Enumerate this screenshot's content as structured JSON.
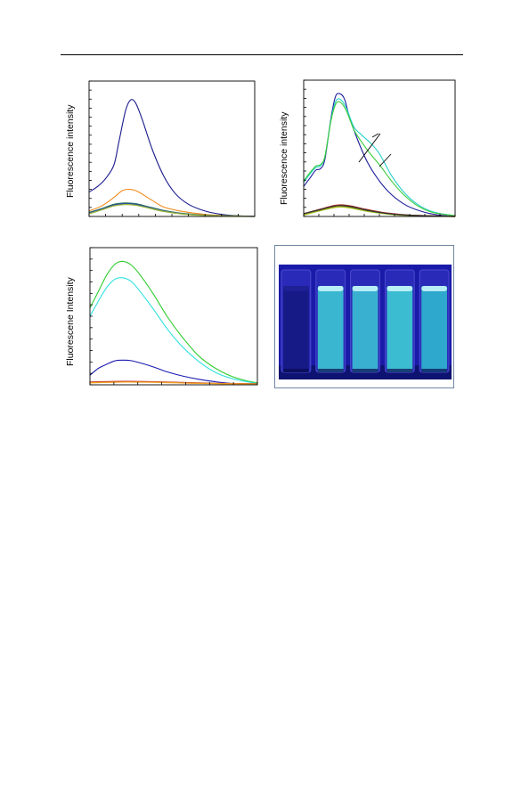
{
  "chart_data": [
    {
      "type": "line",
      "ylabel": "Fluorescence intensity",
      "xlim": [
        0,
        1
      ],
      "ylim": [
        0,
        1
      ],
      "x_ticks": 11,
      "y_ticks": 16,
      "series": [
        {
          "color": "#1a1a8c",
          "values": [
            [
              0,
              0.18
            ],
            [
              0.05,
              0.22
            ],
            [
              0.1,
              0.28
            ],
            [
              0.15,
              0.38
            ],
            [
              0.18,
              0.55
            ],
            [
              0.22,
              0.78
            ],
            [
              0.25,
              0.86
            ],
            [
              0.28,
              0.84
            ],
            [
              0.32,
              0.72
            ],
            [
              0.38,
              0.5
            ],
            [
              0.45,
              0.3
            ],
            [
              0.52,
              0.17
            ],
            [
              0.6,
              0.09
            ],
            [
              0.7,
              0.04
            ],
            [
              0.8,
              0.015
            ],
            [
              0.9,
              0.005
            ],
            [
              1,
              0
            ]
          ]
        },
        {
          "color": "#f08a1c",
          "values": [
            [
              0,
              0.04
            ],
            [
              0.08,
              0.08
            ],
            [
              0.15,
              0.14
            ],
            [
              0.2,
              0.19
            ],
            [
              0.25,
              0.2
            ],
            [
              0.3,
              0.18
            ],
            [
              0.38,
              0.12
            ],
            [
              0.45,
              0.07
            ],
            [
              0.55,
              0.04
            ],
            [
              0.7,
              0.015
            ],
            [
              0.85,
              0.005
            ],
            [
              1,
              0
            ]
          ]
        },
        {
          "color": "#2a7a5a",
          "values": [
            [
              0,
              0.03
            ],
            [
              0.08,
              0.06
            ],
            [
              0.15,
              0.09
            ],
            [
              0.22,
              0.1
            ],
            [
              0.28,
              0.095
            ],
            [
              0.35,
              0.075
            ],
            [
              0.45,
              0.045
            ],
            [
              0.55,
              0.025
            ],
            [
              0.7,
              0.01
            ],
            [
              1,
              0
            ]
          ]
        },
        {
          "color": "#2a4aa0",
          "values": [
            [
              0,
              0.025
            ],
            [
              0.08,
              0.055
            ],
            [
              0.15,
              0.085
            ],
            [
              0.22,
              0.095
            ],
            [
              0.28,
              0.09
            ],
            [
              0.35,
              0.07
            ],
            [
              0.45,
              0.04
            ],
            [
              0.55,
              0.022
            ],
            [
              0.7,
              0.008
            ],
            [
              1,
              0
            ]
          ]
        },
        {
          "color": "#9ab53a",
          "values": [
            [
              0,
              0.02
            ],
            [
              0.08,
              0.05
            ],
            [
              0.15,
              0.078
            ],
            [
              0.22,
              0.088
            ],
            [
              0.28,
              0.083
            ],
            [
              0.35,
              0.065
            ],
            [
              0.45,
              0.037
            ],
            [
              0.55,
              0.02
            ],
            [
              0.7,
              0.007
            ],
            [
              1,
              0
            ]
          ]
        }
      ]
    },
    {
      "type": "line",
      "ylabel": "Fluorescence intensity",
      "xlim": [
        0,
        1
      ],
      "ylim": [
        0,
        1
      ],
      "x_ticks": 11,
      "y_ticks": 16,
      "series": [
        {
          "color": "#1a1a9a",
          "values": [
            [
              0,
              0.22
            ],
            [
              0.04,
              0.28
            ],
            [
              0.08,
              0.34
            ],
            [
              0.11,
              0.35
            ],
            [
              0.14,
              0.42
            ],
            [
              0.18,
              0.72
            ],
            [
              0.21,
              0.88
            ],
            [
              0.24,
              0.9
            ],
            [
              0.27,
              0.86
            ],
            [
              0.3,
              0.74
            ],
            [
              0.35,
              0.58
            ],
            [
              0.42,
              0.4
            ],
            [
              0.5,
              0.26
            ],
            [
              0.58,
              0.16
            ],
            [
              0.68,
              0.08
            ],
            [
              0.8,
              0.03
            ],
            [
              0.9,
              0.01
            ],
            [
              1,
              0
            ]
          ]
        },
        {
          "color": "#28d0c8",
          "values": [
            [
              0,
              0.25
            ],
            [
              0.04,
              0.31
            ],
            [
              0.08,
              0.36
            ],
            [
              0.11,
              0.37
            ],
            [
              0.14,
              0.44
            ],
            [
              0.18,
              0.71
            ],
            [
              0.21,
              0.84
            ],
            [
              0.24,
              0.86
            ],
            [
              0.28,
              0.8
            ],
            [
              0.33,
              0.66
            ],
            [
              0.38,
              0.6
            ],
            [
              0.44,
              0.54
            ],
            [
              0.5,
              0.46
            ],
            [
              0.58,
              0.3
            ],
            [
              0.66,
              0.18
            ],
            [
              0.75,
              0.09
            ],
            [
              0.85,
              0.035
            ],
            [
              1,
              0.005
            ]
          ]
        },
        {
          "color": "#3ccc3c",
          "values": [
            [
              0,
              0.26
            ],
            [
              0.04,
              0.32
            ],
            [
              0.08,
              0.37
            ],
            [
              0.11,
              0.38
            ],
            [
              0.14,
              0.44
            ],
            [
              0.18,
              0.7
            ],
            [
              0.21,
              0.82
            ],
            [
              0.24,
              0.84
            ],
            [
              0.28,
              0.78
            ],
            [
              0.33,
              0.64
            ],
            [
              0.38,
              0.55
            ],
            [
              0.44,
              0.46
            ],
            [
              0.5,
              0.38
            ],
            [
              0.58,
              0.26
            ],
            [
              0.66,
              0.16
            ],
            [
              0.75,
              0.08
            ],
            [
              0.85,
              0.03
            ],
            [
              1,
              0.005
            ]
          ]
        },
        {
          "color": "#b03030",
          "values": [
            [
              0,
              0.02
            ],
            [
              0.1,
              0.05
            ],
            [
              0.2,
              0.08
            ],
            [
              0.25,
              0.085
            ],
            [
              0.32,
              0.075
            ],
            [
              0.42,
              0.05
            ],
            [
              0.55,
              0.025
            ],
            [
              0.7,
              0.01
            ],
            [
              1,
              0
            ]
          ]
        },
        {
          "color": "#f0a020",
          "values": [
            [
              0,
              0.015
            ],
            [
              0.1,
              0.045
            ],
            [
              0.2,
              0.07
            ],
            [
              0.25,
              0.075
            ],
            [
              0.32,
              0.065
            ],
            [
              0.42,
              0.042
            ],
            [
              0.55,
              0.02
            ],
            [
              0.7,
              0.008
            ],
            [
              1,
              0
            ]
          ]
        },
        {
          "color": "#a0c020",
          "values": [
            [
              0,
              0.01
            ],
            [
              0.1,
              0.04
            ],
            [
              0.2,
              0.065
            ],
            [
              0.25,
              0.07
            ],
            [
              0.32,
              0.06
            ],
            [
              0.42,
              0.038
            ],
            [
              0.55,
              0.018
            ],
            [
              0.7,
              0.006
            ],
            [
              1,
              0
            ]
          ]
        },
        {
          "color": "#303030",
          "values": [
            [
              0,
              0.02
            ],
            [
              0.1,
              0.048
            ],
            [
              0.2,
              0.075
            ],
            [
              0.25,
              0.08
            ],
            [
              0.32,
              0.07
            ],
            [
              0.42,
              0.045
            ],
            [
              0.55,
              0.022
            ],
            [
              0.7,
              0.009
            ],
            [
              1,
              0
            ]
          ]
        }
      ]
    },
    {
      "type": "line",
      "ylabel": "Fluorescene Intensity",
      "xlim": [
        0,
        1
      ],
      "ylim": [
        0,
        1
      ],
      "x_ticks": 8,
      "y_ticks": 13,
      "series": [
        {
          "color": "#2ecc2e",
          "values": [
            [
              0,
              0.56
            ],
            [
              0.05,
              0.68
            ],
            [
              0.1,
              0.8
            ],
            [
              0.15,
              0.88
            ],
            [
              0.2,
              0.9
            ],
            [
              0.25,
              0.87
            ],
            [
              0.3,
              0.8
            ],
            [
              0.38,
              0.66
            ],
            [
              0.46,
              0.5
            ],
            [
              0.55,
              0.35
            ],
            [
              0.65,
              0.21
            ],
            [
              0.75,
              0.12
            ],
            [
              0.85,
              0.06
            ],
            [
              0.95,
              0.025
            ],
            [
              1,
              0.015
            ]
          ]
        },
        {
          "color": "#2ee0e0",
          "values": [
            [
              0,
              0.5
            ],
            [
              0.05,
              0.61
            ],
            [
              0.1,
              0.71
            ],
            [
              0.15,
              0.77
            ],
            [
              0.2,
              0.78
            ],
            [
              0.25,
              0.75
            ],
            [
              0.3,
              0.68
            ],
            [
              0.38,
              0.55
            ],
            [
              0.46,
              0.41
            ],
            [
              0.55,
              0.28
            ],
            [
              0.65,
              0.17
            ],
            [
              0.75,
              0.09
            ],
            [
              0.85,
              0.045
            ],
            [
              0.95,
              0.02
            ],
            [
              1,
              0.01
            ]
          ]
        },
        {
          "color": "#1a1ab0",
          "values": [
            [
              0,
              0.07
            ],
            [
              0.05,
              0.12
            ],
            [
              0.1,
              0.15
            ],
            [
              0.15,
              0.175
            ],
            [
              0.2,
              0.18
            ],
            [
              0.25,
              0.175
            ],
            [
              0.3,
              0.16
            ],
            [
              0.38,
              0.13
            ],
            [
              0.46,
              0.095
            ],
            [
              0.55,
              0.065
            ],
            [
              0.65,
              0.04
            ],
            [
              0.75,
              0.022
            ],
            [
              0.85,
              0.01
            ],
            [
              1,
              0.004
            ]
          ]
        },
        {
          "color": "#c03030",
          "values": [
            [
              0,
              0.02
            ],
            [
              0.2,
              0.025
            ],
            [
              0.4,
              0.022
            ],
            [
              0.6,
              0.015
            ],
            [
              0.8,
              0.01
            ],
            [
              1,
              0.008
            ]
          ]
        },
        {
          "color": "#f0a020",
          "values": [
            [
              0,
              0.015
            ],
            [
              0.2,
              0.02
            ],
            [
              0.4,
              0.018
            ],
            [
              0.6,
              0.012
            ],
            [
              0.8,
              0.008
            ],
            [
              1,
              0.006
            ]
          ]
        }
      ]
    }
  ],
  "photo": {
    "background": "#1a1aa8",
    "cuvettes": [
      {
        "fill": "#161a86"
      },
      {
        "fill": "#3ab6d0"
      },
      {
        "fill": "#3ab0d0"
      },
      {
        "fill": "#3cbcd0"
      },
      {
        "fill": "#2ea8cc"
      }
    ]
  }
}
